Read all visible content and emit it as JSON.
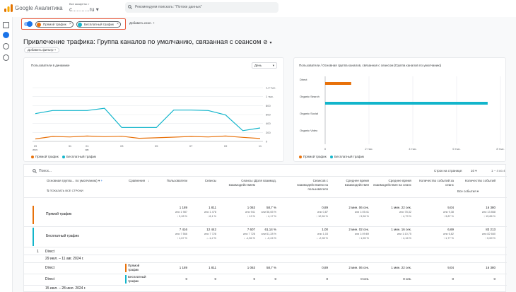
{
  "app": {
    "logo_name": "Google Analytics logo",
    "name": "Google Аналитика"
  },
  "account": {
    "label": "Все аккаунты > ",
    "property": "с...........ru"
  },
  "search": {
    "placeholder": "Рекомендуем поискать: \"Потоки данных\""
  },
  "comparison": {
    "chips": [
      {
        "label": "Прямой трафик",
        "color": "#e8710a"
      },
      {
        "label": "Бесплатный трафик",
        "color": "#12b5cb"
      }
    ],
    "add_label": "Добавить искл."
  },
  "page": {
    "title": "Привлечение трафика: Группа каналов по умолчанию, связанная с сеансом",
    "add_filter": "Добавить фильтр +"
  },
  "line_card": {
    "title": "Пользователи в динамике",
    "dropdown": "День",
    "y_ticks": [
      "1,2 тыс.",
      "1 тыс.",
      "800",
      "600",
      "400",
      "200",
      "0"
    ],
    "x_ticks": [
      {
        "day": "29",
        "month": "июл."
      },
      {
        "day": "31",
        "month": ""
      },
      {
        "day": "01",
        "month": "авг."
      },
      {
        "day": "03",
        "month": ""
      },
      {
        "day": "05",
        "month": ""
      },
      {
        "day": "07",
        "month": ""
      },
      {
        "day": "09",
        "month": ""
      },
      {
        "day": "11",
        "month": ""
      }
    ],
    "legend": [
      "Прямой трафик",
      "Бесплатный трафик"
    ]
  },
  "bar_card": {
    "title": "Пользователи / Основная группа каналов, связанная с сеансом (Группа каналов по умолчанию)",
    "x_ticks": [
      "0",
      "2 тыс.",
      "4 тыс.",
      "6 тыс.",
      "8 тыс."
    ],
    "legend": [
      "Прямой трафик",
      "Бесплатный трафик"
    ]
  },
  "chart_data": [
    {
      "type": "line",
      "title": "Пользователи в динамике",
      "x": [
        "29 июл.",
        "30",
        "31",
        "01 авг.",
        "02",
        "03",
        "04",
        "05",
        "06",
        "07",
        "08",
        "09",
        "10",
        "11"
      ],
      "ylim": [
        0,
        1200
      ],
      "series": [
        {
          "name": "Прямой трафик",
          "color": "#e8710a",
          "values": [
            55,
            110,
            100,
            120,
            105,
            115,
            70,
            80,
            95,
            110,
            100,
            120,
            90,
            65
          ]
        },
        {
          "name": "Бесплатный трафик",
          "color": "#12b5cb",
          "values": [
            620,
            690,
            690,
            690,
            740,
            310,
            310,
            310,
            700,
            700,
            690,
            590,
            240,
            300
          ]
        }
      ]
    },
    {
      "type": "bar",
      "title": "Пользователи / Основная группа каналов, связанная с сеансом (Группа каналов по умолчанию)",
      "categories": [
        "Direct",
        "Organic Search",
        "Organic Social",
        "Organic Video"
      ],
      "xlim": [
        0,
        8000
      ],
      "series": [
        {
          "name": "Прямой трафик",
          "color": "#e8710a",
          "values": [
            1189,
            0,
            0,
            0
          ]
        },
        {
          "name": "Бесплатный трафик",
          "color": "#12b5cb",
          "values": [
            0,
            7416,
            0,
            0
          ]
        }
      ]
    }
  ],
  "table": {
    "search_placeholder": "Поиск...",
    "rows_per_page_label": "Строк на странице:",
    "rows_per_page": "10",
    "pagination": "1 – 4 из 4",
    "headers": {
      "dim": "Основная группа... по умолчанию)",
      "compare": "Сравнения",
      "show_all": "ПОКАЗАТЬ ВСЕ СТРОКИ",
      "events_filter": "Все события",
      "metrics": [
        "Пользователи",
        "Сеансы",
        "Сеансы с взаимодействием",
        "Доля взаимод.",
        "Сеансов с взаимодействием на пользователя",
        "Среднее время взаимодействия",
        "Среднее время взаимодействия на сеанс",
        "Количество событий за сеанс",
        "Количество событий"
      ]
    },
    "summary": [
      {
        "label": "Прямой трафик",
        "color": "#e8710a",
        "values": [
          "1 189",
          "1 811",
          "1 063",
          "58,7 %",
          "0,89",
          "2 мин. 06 сек.",
          "1 мин. 22 сек.",
          "9,04",
          "16 380"
        ],
        "sub1": [
          "или 1 987",
          "или 1 478",
          "или 941",
          "или 56,65 %",
          "или 0,87",
          "или 1:05:41",
          "или 78,32",
          "или 9,38",
          "или 13 868"
        ],
        "sub2": [
          "↑ 9,28 %",
          "↑ 8,1 %",
          "↑ 13 %",
          "↑ 4,17 %",
          "↑ 12,56 %",
          "↑ 5,56 %",
          "↑ 4,79 %",
          "↑ 3,87 %",
          "↑ 19,86 %"
        ]
      },
      {
        "label": "Бесплатный трафик",
        "color": "#12b5cb",
        "values": [
          "7 416",
          "12 442",
          "7 607",
          "61,14 %",
          "1,00",
          "2 мин. 02 сек.",
          "1 мин. 16 сек.",
          "6,69",
          "83 213"
        ],
        "sub1": [
          "или 7 566",
          "или 7 728",
          "или 7 728",
          "или 61,28 %",
          "или 1,03",
          "или 1:09:69",
          "или 1:10,75",
          "или 6,82",
          "или 82 660"
        ],
        "sub2": [
          "↑ 1,67 %",
          "↓ -1,2 %",
          "↓ -1,56 %",
          "↓ -0,24 %",
          "↓ -2,98 %",
          "↑ 1,55 %",
          "↑ 4,16 %",
          "↑ 1,77 %",
          "↑ 0,69 %"
        ]
      }
    ],
    "group": {
      "index": "1",
      "name": "Direct"
    },
    "ranges": [
      "29 июл. – 11 авг. 2024 г.",
      "15 июл. – 28 июл. 2024 г."
    ],
    "detail": [
      {
        "name": "Direct",
        "seg": "Прямой трафик",
        "color": "#e8710a",
        "values": [
          "1 189",
          "1 811",
          "1 063",
          "58,7 %",
          "0,89",
          "2 мин. 06 сек.",
          "1 мин. 22 сек.",
          "9,04",
          "16 380"
        ]
      },
      {
        "name": "Direct",
        "seg": "Бесплатный трафик",
        "color": "#12b5cb",
        "values": [
          "0",
          "0",
          "0",
          "0",
          "0",
          "0 сек.",
          "0 сек.",
          "0",
          "0"
        ]
      }
    ]
  }
}
